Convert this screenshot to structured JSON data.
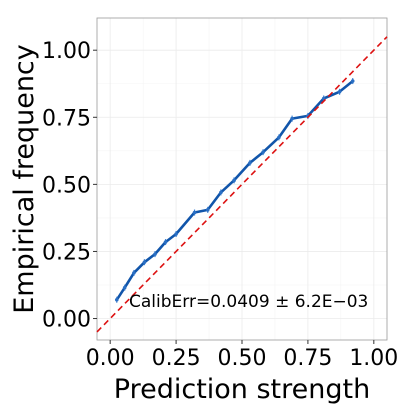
{
  "chart_data": {
    "type": "line",
    "xlabel": "Prediction strength",
    "ylabel": "Empirical frequency",
    "xlim": [
      -0.05,
      1.05
    ],
    "ylim": [
      -0.08,
      1.12
    ],
    "x_ticks": [
      0.0,
      0.25,
      0.5,
      0.75,
      1.0
    ],
    "x_tick_labels": [
      "0.00",
      "0.25",
      "0.50",
      "0.75",
      "1.00"
    ],
    "y_ticks": [
      0.0,
      0.25,
      0.5,
      0.75,
      1.0
    ],
    "y_tick_labels": [
      "0.00",
      "0.25",
      "0.50",
      "0.75",
      "1.00"
    ],
    "grid": true,
    "annotation": "CalibErr=0.0409 ± 6.2E−03",
    "series": [
      {
        "kind": "calibration",
        "color": "#1155aa",
        "x": [
          0.025,
          0.055,
          0.09,
          0.13,
          0.17,
          0.21,
          0.25,
          0.32,
          0.37,
          0.42,
          0.47,
          0.53,
          0.58,
          0.64,
          0.69,
          0.75,
          0.81,
          0.87,
          0.92
        ],
        "y": [
          0.07,
          0.115,
          0.17,
          0.21,
          0.24,
          0.285,
          0.315,
          0.395,
          0.405,
          0.47,
          0.515,
          0.58,
          0.62,
          0.675,
          0.745,
          0.755,
          0.82,
          0.845,
          0.885
        ]
      },
      {
        "kind": "reference",
        "color": "#dd1111",
        "dashed": true,
        "x": [
          -0.05,
          1.05
        ],
        "y": [
          -0.05,
          1.05
        ]
      }
    ]
  }
}
